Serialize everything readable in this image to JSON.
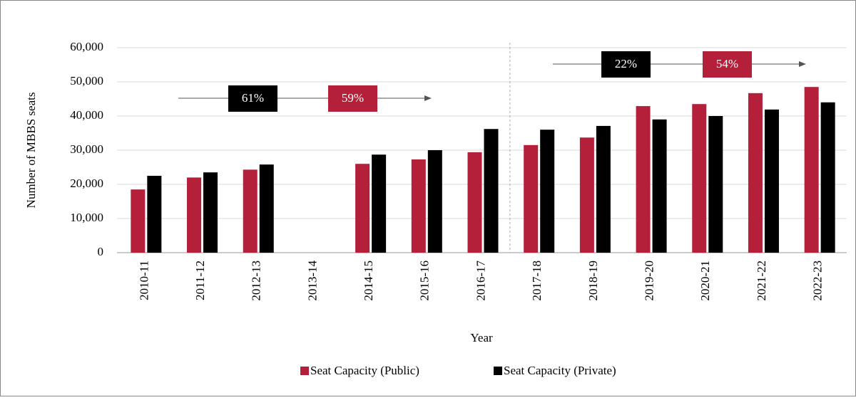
{
  "chart_data": {
    "type": "bar",
    "x_label": "Year",
    "y_label": "Number of MBBS seats",
    "categories": [
      "2010-11",
      "2011-12",
      "2012-13",
      "2013-14",
      "2014-15",
      "2015-16",
      "2016-17",
      "2017-18",
      "2018-19",
      "2019-20",
      "2020-21",
      "2021-22",
      "2022-23"
    ],
    "series": [
      {
        "name": "Seat Capacity (Public)",
        "color": "#b41f3a",
        "values": [
          18500,
          22000,
          24300,
          null,
          26000,
          27300,
          29400,
          31500,
          33700,
          42900,
          43500,
          46700,
          48500
        ]
      },
      {
        "name": "Seat Capacity (Private)",
        "color": "#000000",
        "values": [
          22500,
          23500,
          25800,
          null,
          28700,
          30000,
          36200,
          36000,
          37100,
          39000,
          40000,
          41900,
          44000
        ]
      }
    ],
    "ylim": [
      0,
      60000
    ],
    "yticks": [
      {
        "value": 0,
        "label": "0"
      },
      {
        "value": 10000,
        "label": "10,000"
      },
      {
        "value": 20000,
        "label": "20,000"
      },
      {
        "value": 30000,
        "label": "30,000"
      },
      {
        "value": 40000,
        "label": "40,000"
      },
      {
        "value": 50000,
        "label": "50,000"
      },
      {
        "value": 60000,
        "label": "60,000"
      }
    ],
    "grid": true,
    "annotations": [
      {
        "text": "61%",
        "color": "#000000"
      },
      {
        "text": "59%",
        "color": "#b41f3a"
      },
      {
        "text": "22%",
        "color": "#000000"
      },
      {
        "text": "54%",
        "color": "#b41f3a"
      }
    ]
  }
}
